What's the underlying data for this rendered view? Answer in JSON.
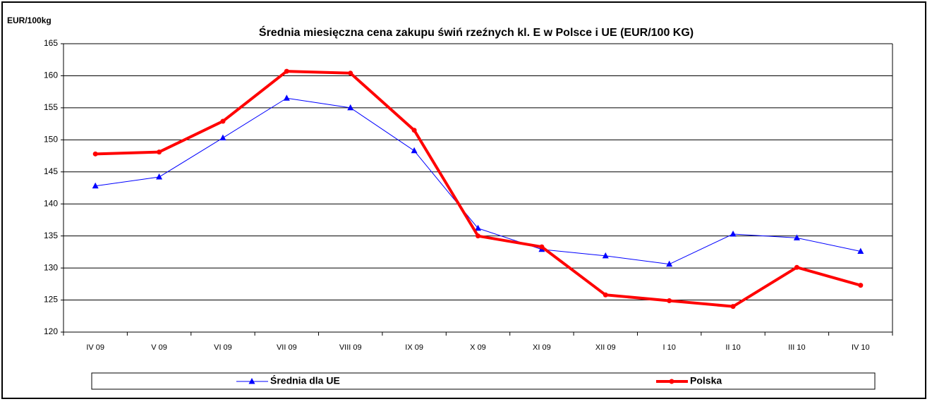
{
  "chart_data": {
    "type": "line",
    "title": "Średnia miesięczna cena zakupu świń rzeźnych kl. E w  Polsce i UE (EUR/100 KG)",
    "y_label": "EUR/100kg",
    "categories": [
      "IV 09",
      "V 09",
      "VI 09",
      "VII 09",
      "VIII 09",
      "IX 09",
      "X 09",
      "XI 09",
      "XII 09",
      "I 10",
      "II 10",
      "III 10",
      "IV 10"
    ],
    "series": [
      {
        "name": "Średnia dla  UE",
        "color": "#0000ff",
        "marker": "triangle",
        "values": [
          142.8,
          144.2,
          150.3,
          156.5,
          155.0,
          148.3,
          136.2,
          132.9,
          131.9,
          130.6,
          135.3,
          134.7,
          132.6
        ]
      },
      {
        "name": "Polska",
        "color": "#ff0000",
        "marker": "circle",
        "values": [
          147.8,
          148.1,
          152.9,
          160.7,
          160.4,
          151.5,
          135.0,
          133.3,
          125.8,
          124.9,
          124.0,
          130.1,
          127.3
        ]
      }
    ],
    "ylim": [
      120,
      165
    ],
    "yticks": [
      120,
      125,
      130,
      135,
      140,
      145,
      150,
      155,
      160,
      165
    ],
    "grid": true,
    "legend": "bottom"
  }
}
